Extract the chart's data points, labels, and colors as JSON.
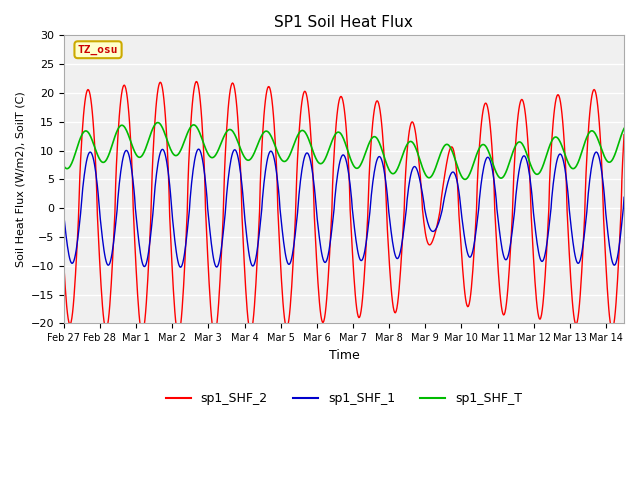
{
  "title": "SP1 Soil Heat Flux",
  "ylabel": "Soil Heat Flux (W/m2), SoilT (C)",
  "xlabel": "Time",
  "ylim": [
    -20,
    30
  ],
  "fig_bg_color": "#ffffff",
  "plot_bg_color": "#f0f0f0",
  "grid_color": "#ffffff",
  "color_red": "#ff0000",
  "color_blue": "#0000cc",
  "color_green": "#00bb00",
  "tz_label": "TZ_osu",
  "tz_bg": "#ffffcc",
  "tz_border": "#ccaa00",
  "tz_text_color": "#cc0000",
  "legend_labels": [
    "sp1_SHF_2",
    "sp1_SHF_1",
    "sp1_SHF_T"
  ],
  "tick_days": [
    "Feb 27",
    "Feb 28",
    "Mar 1",
    "Mar 2",
    "Mar 3",
    "Mar 4",
    "Mar 5",
    "Mar 6",
    "Mar 7",
    "Mar 8",
    "Mar 9",
    "Mar 10",
    "Mar 11",
    "Mar 12",
    "Mar 13",
    "Mar 14"
  ],
  "tick_positions": [
    0,
    1,
    2,
    3,
    4,
    5,
    6,
    7,
    8,
    9,
    10,
    11,
    12,
    13,
    14,
    15
  ]
}
